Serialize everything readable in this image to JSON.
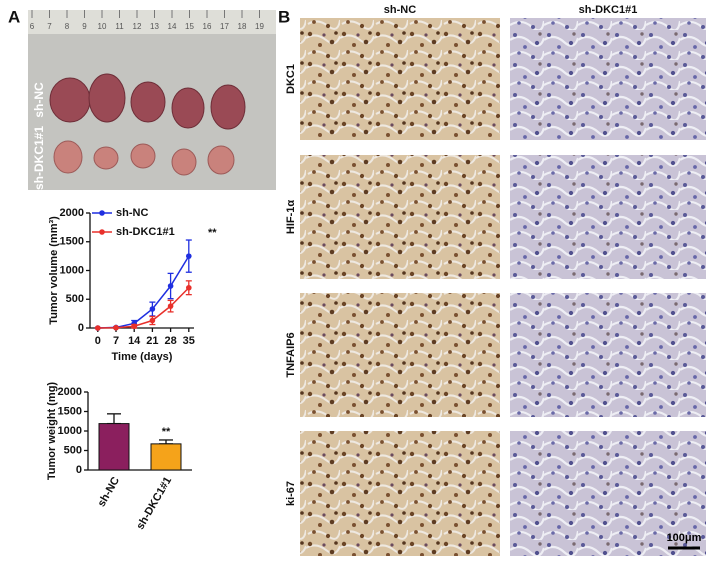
{
  "panel_labels": [
    "A",
    "B"
  ],
  "photo": {
    "ruler": [
      6,
      7,
      8,
      9,
      10,
      11,
      12,
      13,
      14,
      15,
      16,
      17,
      18,
      19
    ],
    "group_labels": [
      "sh-NC",
      "sh-DKC1#1"
    ]
  },
  "chart_data": [
    {
      "type": "line",
      "y_label": "Tumor volume (mm³)",
      "x_label": "Time (days)",
      "x": [
        0,
        7,
        14,
        21,
        28,
        35
      ],
      "xlim": [
        -3,
        37
      ],
      "xticks": [
        0,
        7,
        14,
        21,
        28,
        35
      ],
      "ylim": [
        0,
        2000
      ],
      "yticks": [
        0,
        500,
        1000,
        1500,
        2000
      ],
      "series": [
        {
          "name": "sh-NC",
          "color": "#1f2fe0",
          "values": [
            0,
            10,
            80,
            330,
            730,
            1250
          ],
          "errors": [
            0,
            10,
            50,
            120,
            220,
            280
          ]
        },
        {
          "name": "sh-DKC1#1",
          "color": "#e8302b",
          "values": [
            0,
            5,
            30,
            130,
            380,
            700
          ],
          "errors": [
            0,
            5,
            30,
            70,
            100,
            120
          ]
        }
      ],
      "annotation": "**"
    },
    {
      "type": "bar",
      "y_label": "Tumor weight (mg)",
      "categories": [
        "sh-NC",
        "sh-DKC1#1"
      ],
      "values": [
        1190,
        670
      ],
      "errors": [
        250,
        100
      ],
      "colors": [
        "#8b1f5e",
        "#f5a31a"
      ],
      "ylim": [
        0,
        2000
      ],
      "yticks": [
        0,
        500,
        1000,
        1500,
        2000
      ],
      "annotation": "**"
    }
  ],
  "ihc": {
    "columns": [
      "sh-NC",
      "sh-DKC1#1"
    ],
    "rows": [
      "DKC1",
      "HIF-1α",
      "TNFAIP6",
      "ki-67"
    ],
    "scale_bar": "100μm"
  }
}
